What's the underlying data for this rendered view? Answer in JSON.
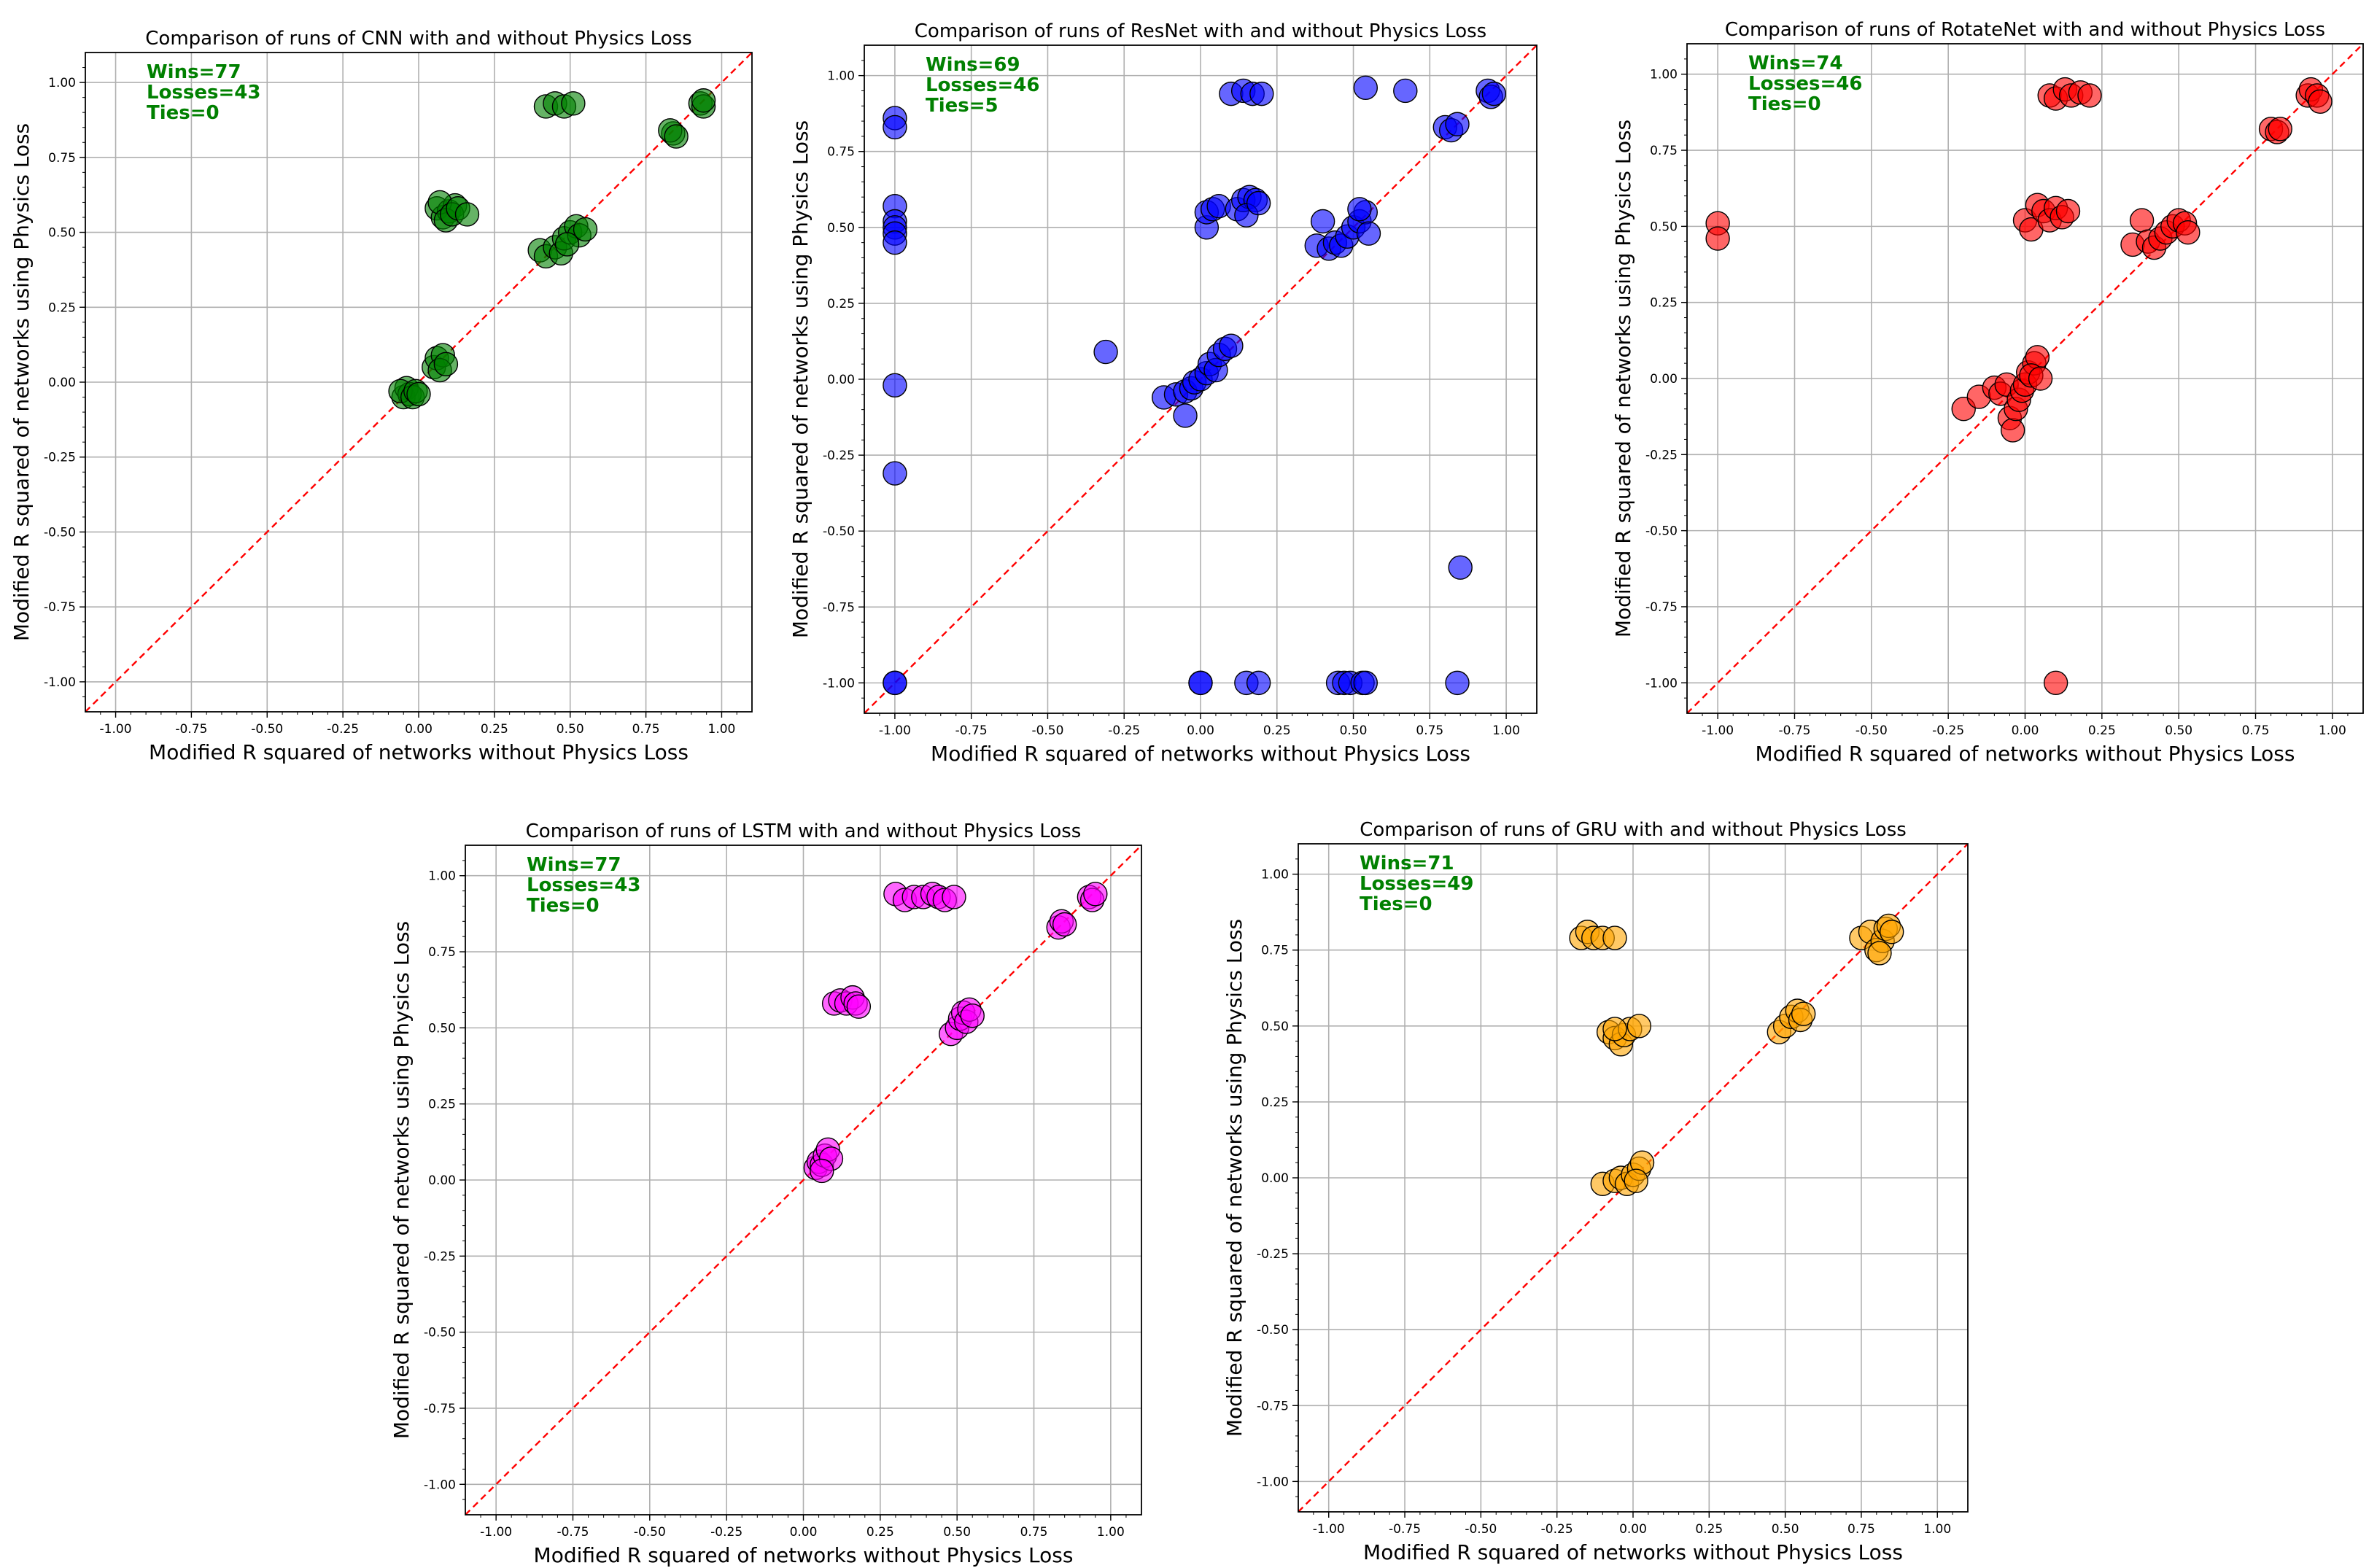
{
  "chart_data": [
    {
      "type": "scatter",
      "title": "Comparison of runs of CNN with and without Physics Loss",
      "xlabel": "Modified R squared of networks without Physics Loss",
      "ylabel": "Modified R squared of networks using Physics Loss",
      "xlim": [
        -1.1,
        1.1
      ],
      "ylim": [
        -1.1,
        1.1
      ],
      "ticks": [
        "-1.00",
        "-0.75",
        "-0.50",
        "-0.25",
        "0.00",
        "0.25",
        "0.50",
        "0.75",
        "1.00"
      ],
      "grid": true,
      "reference_line": "y = x",
      "point_color": "#008000",
      "stats": {
        "wins": "Wins=77",
        "losses": "Losses=43",
        "ties": "Ties=0"
      },
      "points": [
        [
          -0.05,
          -0.05
        ],
        [
          -0.04,
          -0.02
        ],
        [
          -0.03,
          -0.04
        ],
        [
          -0.06,
          -0.03
        ],
        [
          -0.02,
          -0.05
        ],
        [
          -0.01,
          -0.03
        ],
        [
          0.0,
          -0.04
        ],
        [
          0.05,
          0.05
        ],
        [
          0.06,
          0.08
        ],
        [
          0.08,
          0.09
        ],
        [
          0.07,
          0.04
        ],
        [
          0.09,
          0.06
        ],
        [
          0.06,
          0.58
        ],
        [
          0.08,
          0.55
        ],
        [
          0.1,
          0.57
        ],
        [
          0.12,
          0.59
        ],
        [
          0.07,
          0.6
        ],
        [
          0.09,
          0.54
        ],
        [
          0.11,
          0.56
        ],
        [
          0.13,
          0.58
        ],
        [
          0.16,
          0.56
        ],
        [
          0.42,
          0.92
        ],
        [
          0.45,
          0.93
        ],
        [
          0.48,
          0.92
        ],
        [
          0.51,
          0.93
        ],
        [
          0.4,
          0.44
        ],
        [
          0.42,
          0.42
        ],
        [
          0.45,
          0.45
        ],
        [
          0.47,
          0.43
        ],
        [
          0.48,
          0.48
        ],
        [
          0.5,
          0.5
        ],
        [
          0.52,
          0.52
        ],
        [
          0.53,
          0.49
        ],
        [
          0.55,
          0.51
        ],
        [
          0.49,
          0.46
        ],
        [
          0.84,
          0.83
        ],
        [
          0.83,
          0.84
        ],
        [
          0.85,
          0.82
        ],
        [
          0.93,
          0.93
        ],
        [
          0.94,
          0.92
        ],
        [
          0.94,
          0.94
        ]
      ]
    },
    {
      "type": "scatter",
      "title": "Comparison of runs of ResNet with and without Physics Loss",
      "xlabel": "Modified R squared of networks without Physics Loss",
      "ylabel": "Modified R squared of networks using Physics Loss",
      "xlim": [
        -1.1,
        1.1
      ],
      "ylim": [
        -1.1,
        1.1
      ],
      "ticks": [
        "-1.00",
        "-0.75",
        "-0.50",
        "-0.25",
        "0.00",
        "0.25",
        "0.50",
        "0.75",
        "1.00"
      ],
      "grid": true,
      "reference_line": "y = x",
      "point_color": "#0000ff",
      "stats": {
        "wins": "Wins=69",
        "losses": "Losses=46",
        "ties": "Ties=5"
      },
      "points": [
        [
          -1.0,
          0.86
        ],
        [
          -1.0,
          0.83
        ],
        [
          -1.0,
          0.57
        ],
        [
          -1.0,
          0.52
        ],
        [
          -1.0,
          0.5
        ],
        [
          -1.0,
          0.48
        ],
        [
          -1.0,
          0.45
        ],
        [
          -1.0,
          -0.02
        ],
        [
          -1.0,
          -0.31
        ],
        [
          -1.0,
          -1.0
        ],
        [
          -1.0,
          -1.0
        ],
        [
          -0.31,
          0.09
        ],
        [
          -0.12,
          -0.06
        ],
        [
          -0.08,
          -0.05
        ],
        [
          -0.05,
          -0.04
        ],
        [
          -0.05,
          -0.12
        ],
        [
          -0.03,
          -0.03
        ],
        [
          -0.02,
          -0.01
        ],
        [
          0.0,
          0.0
        ],
        [
          0.02,
          0.02
        ],
        [
          0.03,
          0.05
        ],
        [
          0.05,
          0.03
        ],
        [
          0.06,
          0.08
        ],
        [
          0.08,
          0.1
        ],
        [
          0.1,
          0.11
        ],
        [
          0.02,
          0.5
        ],
        [
          0.02,
          0.55
        ],
        [
          0.04,
          0.56
        ],
        [
          0.06,
          0.57
        ],
        [
          0.1,
          0.94
        ],
        [
          0.14,
          0.95
        ],
        [
          0.17,
          0.94
        ],
        [
          0.2,
          0.94
        ],
        [
          0.12,
          0.56
        ],
        [
          0.14,
          0.59
        ],
        [
          0.16,
          0.6
        ],
        [
          0.18,
          0.59
        ],
        [
          0.15,
          0.54
        ],
        [
          0.19,
          0.58
        ],
        [
          0.38,
          0.44
        ],
        [
          0.42,
          0.43
        ],
        [
          0.44,
          0.45
        ],
        [
          0.46,
          0.44
        ],
        [
          0.48,
          0.47
        ],
        [
          0.5,
          0.5
        ],
        [
          0.52,
          0.52
        ],
        [
          0.54,
          0.55
        ],
        [
          0.52,
          0.56
        ],
        [
          0.55,
          0.48
        ],
        [
          0.4,
          0.52
        ],
        [
          0.54,
          0.96
        ],
        [
          0.67,
          0.95
        ],
        [
          0.8,
          0.83
        ],
        [
          0.82,
          0.82
        ],
        [
          0.84,
          0.84
        ],
        [
          0.94,
          0.95
        ],
        [
          0.95,
          0.93
        ],
        [
          0.96,
          0.94
        ],
        [
          0.85,
          -0.62
        ],
        [
          0.0,
          -1.0
        ],
        [
          0.0,
          -1.0
        ],
        [
          0.15,
          -1.0
        ],
        [
          0.19,
          -1.0
        ],
        [
          0.45,
          -1.0
        ],
        [
          0.47,
          -1.0
        ],
        [
          0.49,
          -1.0
        ],
        [
          0.53,
          -1.0
        ],
        [
          0.54,
          -1.0
        ],
        [
          0.84,
          -1.0
        ]
      ]
    },
    {
      "type": "scatter",
      "title": "Comparison of runs of RotateNet with and without Physics Loss",
      "xlabel": "Modified R squared of networks without Physics Loss",
      "ylabel": "Modified R squared of networks using Physics Loss",
      "xlim": [
        -1.1,
        1.1
      ],
      "ylim": [
        -1.1,
        1.1
      ],
      "ticks": [
        "-1.00",
        "-0.75",
        "-0.50",
        "-0.25",
        "0.00",
        "0.25",
        "0.50",
        "0.75",
        "1.00"
      ],
      "grid": true,
      "reference_line": "y = x",
      "point_color": "#ff0000",
      "stats": {
        "wins": "Wins=74",
        "losses": "Losses=46",
        "ties": "Ties=0"
      },
      "points": [
        [
          -1.0,
          0.51
        ],
        [
          -1.0,
          0.46
        ],
        [
          -0.2,
          -0.1
        ],
        [
          -0.15,
          -0.06
        ],
        [
          -0.1,
          -0.03
        ],
        [
          -0.08,
          -0.05
        ],
        [
          -0.06,
          -0.02
        ],
        [
          -0.05,
          -0.13
        ],
        [
          -0.04,
          -0.17
        ],
        [
          -0.03,
          -0.1
        ],
        [
          -0.02,
          -0.07
        ],
        [
          -0.01,
          -0.04
        ],
        [
          0.0,
          -0.02
        ],
        [
          0.01,
          0.02
        ],
        [
          0.03,
          0.05
        ],
        [
          0.04,
          0.07
        ],
        [
          0.02,
          0.01
        ],
        [
          0.05,
          0.0
        ],
        [
          0.0,
          0.52
        ],
        [
          0.02,
          0.49
        ],
        [
          0.04,
          0.57
        ],
        [
          0.06,
          0.55
        ],
        [
          0.08,
          0.52
        ],
        [
          0.1,
          0.56
        ],
        [
          0.12,
          0.53
        ],
        [
          0.14,
          0.55
        ],
        [
          0.08,
          0.93
        ],
        [
          0.1,
          0.92
        ],
        [
          0.13,
          0.95
        ],
        [
          0.15,
          0.93
        ],
        [
          0.18,
          0.94
        ],
        [
          0.21,
          0.93
        ],
        [
          0.35,
          0.44
        ],
        [
          0.38,
          0.52
        ],
        [
          0.4,
          0.45
        ],
        [
          0.42,
          0.43
        ],
        [
          0.44,
          0.46
        ],
        [
          0.46,
          0.48
        ],
        [
          0.48,
          0.5
        ],
        [
          0.5,
          0.52
        ],
        [
          0.52,
          0.51
        ],
        [
          0.53,
          0.48
        ],
        [
          0.8,
          0.82
        ],
        [
          0.82,
          0.81
        ],
        [
          0.83,
          0.82
        ],
        [
          0.92,
          0.93
        ],
        [
          0.93,
          0.95
        ],
        [
          0.95,
          0.93
        ],
        [
          0.96,
          0.91
        ],
        [
          0.1,
          -1.0
        ]
      ]
    },
    {
      "type": "scatter",
      "title": "Comparison of runs of LSTM with and without Physics Loss",
      "xlabel": "Modified R squared of networks without Physics Loss",
      "ylabel": "Modified R squared of networks using Physics Loss",
      "xlim": [
        -1.1,
        1.1
      ],
      "ylim": [
        -1.1,
        1.1
      ],
      "ticks": [
        "-1.00",
        "-0.75",
        "-0.50",
        "-0.25",
        "0.00",
        "0.25",
        "0.50",
        "0.75",
        "1.00"
      ],
      "grid": true,
      "reference_line": "y = x",
      "point_color": "#ff00ff",
      "stats": {
        "wins": "Wins=77",
        "losses": "Losses=43",
        "ties": "Ties=0"
      },
      "points": [
        [
          0.04,
          0.04
        ],
        [
          0.05,
          0.06
        ],
        [
          0.06,
          0.05
        ],
        [
          0.07,
          0.08
        ],
        [
          0.08,
          0.1
        ],
        [
          0.09,
          0.07
        ],
        [
          0.06,
          0.03
        ],
        [
          0.1,
          0.58
        ],
        [
          0.12,
          0.59
        ],
        [
          0.14,
          0.58
        ],
        [
          0.16,
          0.6
        ],
        [
          0.17,
          0.58
        ],
        [
          0.18,
          0.57
        ],
        [
          0.3,
          0.94
        ],
        [
          0.33,
          0.92
        ],
        [
          0.36,
          0.93
        ],
        [
          0.39,
          0.93
        ],
        [
          0.42,
          0.94
        ],
        [
          0.44,
          0.93
        ],
        [
          0.46,
          0.92
        ],
        [
          0.49,
          0.93
        ],
        [
          0.48,
          0.48
        ],
        [
          0.5,
          0.5
        ],
        [
          0.51,
          0.53
        ],
        [
          0.52,
          0.55
        ],
        [
          0.53,
          0.52
        ],
        [
          0.54,
          0.56
        ],
        [
          0.55,
          0.54
        ],
        [
          0.83,
          0.83
        ],
        [
          0.84,
          0.85
        ],
        [
          0.85,
          0.84
        ],
        [
          0.93,
          0.93
        ],
        [
          0.94,
          0.92
        ],
        [
          0.95,
          0.94
        ]
      ]
    },
    {
      "type": "scatter",
      "title": "Comparison of runs of GRU with and without Physics Loss",
      "xlabel": "Modified R squared of networks without Physics Loss",
      "ylabel": "Modified R squared of networks using Physics Loss",
      "xlim": [
        -1.1,
        1.1
      ],
      "ylim": [
        -1.1,
        1.1
      ],
      "ticks": [
        "-1.00",
        "-0.75",
        "-0.50",
        "-0.25",
        "0.00",
        "0.25",
        "0.50",
        "0.75",
        "1.00"
      ],
      "grid": true,
      "reference_line": "y = x",
      "point_color": "#ffa500",
      "stats": {
        "wins": "Wins=71",
        "losses": "Losses=49",
        "ties": "Ties=0"
      },
      "points": [
        [
          -0.17,
          0.79
        ],
        [
          -0.15,
          0.81
        ],
        [
          -0.13,
          0.79
        ],
        [
          -0.1,
          0.79
        ],
        [
          -0.06,
          0.79
        ],
        [
          -0.08,
          0.48
        ],
        [
          -0.06,
          0.46
        ],
        [
          -0.04,
          0.44
        ],
        [
          -0.03,
          0.47
        ],
        [
          -0.01,
          0.49
        ],
        [
          0.02,
          0.5
        ],
        [
          -0.06,
          0.49
        ],
        [
          -0.1,
          -0.02
        ],
        [
          -0.06,
          -0.01
        ],
        [
          -0.04,
          0.0
        ],
        [
          -0.02,
          -0.02
        ],
        [
          0.0,
          0.01
        ],
        [
          0.02,
          0.03
        ],
        [
          0.03,
          0.05
        ],
        [
          0.01,
          -0.01
        ],
        [
          0.48,
          0.48
        ],
        [
          0.5,
          0.5
        ],
        [
          0.52,
          0.53
        ],
        [
          0.54,
          0.55
        ],
        [
          0.55,
          0.52
        ],
        [
          0.56,
          0.54
        ],
        [
          0.75,
          0.79
        ],
        [
          0.78,
          0.81
        ],
        [
          0.8,
          0.75
        ],
        [
          0.82,
          0.78
        ],
        [
          0.83,
          0.82
        ],
        [
          0.84,
          0.83
        ],
        [
          0.85,
          0.81
        ],
        [
          0.81,
          0.74
        ]
      ]
    }
  ]
}
